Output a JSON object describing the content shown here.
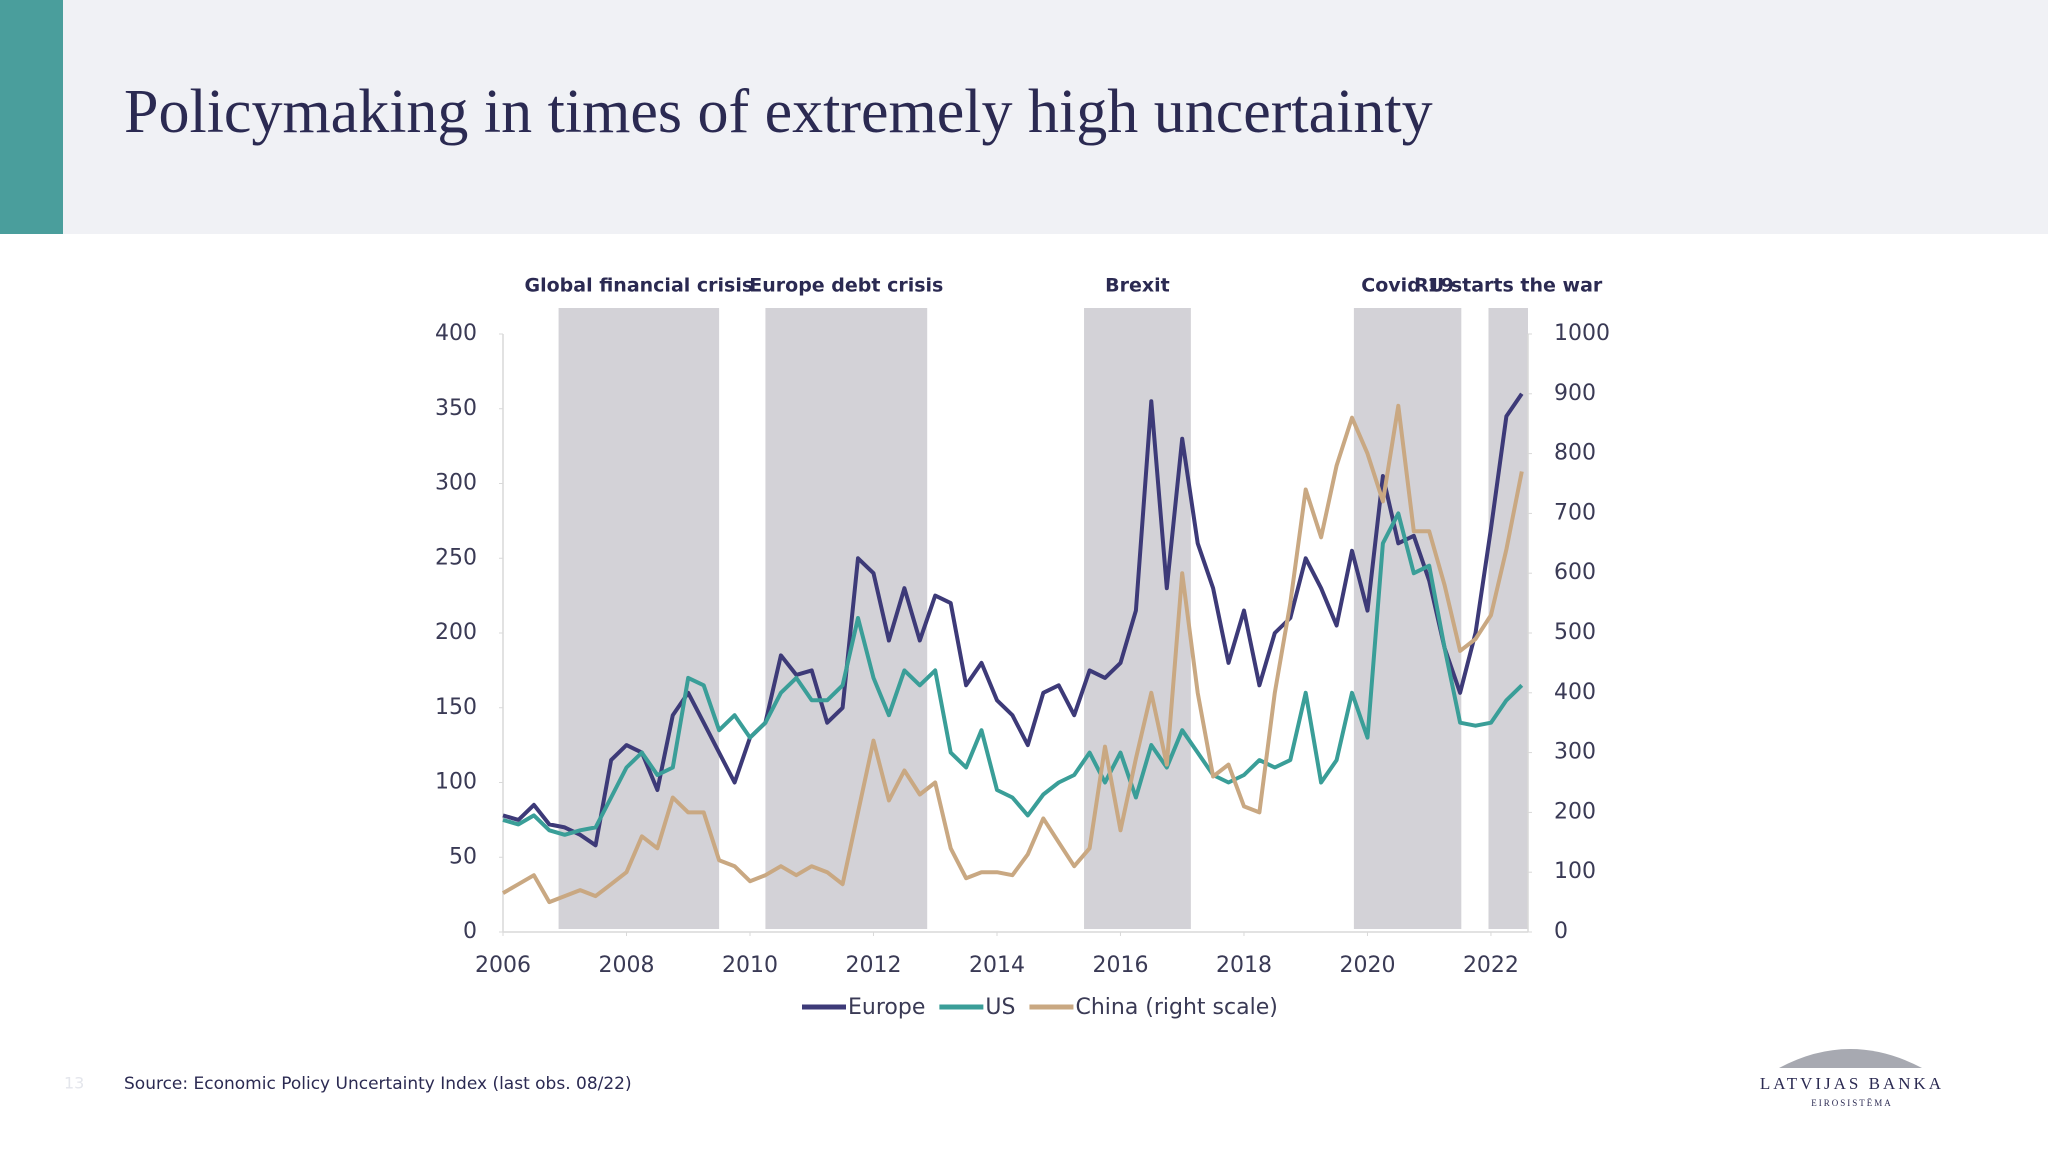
{
  "slide": {
    "title": "Policymaking in times of extremely high uncertainty"
  },
  "chart_data": {
    "type": "line",
    "x": [
      2006,
      2006.25,
      2006.5,
      2006.75,
      2007,
      2007.25,
      2007.5,
      2007.75,
      2008,
      2008.25,
      2008.5,
      2008.75,
      2009,
      2009.25,
      2009.5,
      2009.75,
      2010,
      2010.25,
      2010.5,
      2010.75,
      2011,
      2011.25,
      2011.5,
      2011.75,
      2012,
      2012.25,
      2012.5,
      2012.75,
      2013,
      2013.25,
      2013.5,
      2013.75,
      2014,
      2014.25,
      2014.5,
      2014.75,
      2015,
      2015.25,
      2015.5,
      2015.75,
      2016,
      2016.25,
      2016.5,
      2016.75,
      2017,
      2017.25,
      2017.5,
      2017.75,
      2018,
      2018.25,
      2018.5,
      2018.75,
      2019,
      2019.25,
      2019.5,
      2019.75,
      2020,
      2020.25,
      2020.5,
      2020.75,
      2021,
      2021.25,
      2021.5,
      2021.75,
      2022,
      2022.25,
      2022.5
    ],
    "series": [
      {
        "name": "Europe",
        "color": "#3d3a78",
        "values": [
          78,
          75,
          85,
          72,
          70,
          65,
          58,
          115,
          125,
          120,
          95,
          145,
          160,
          140,
          120,
          100,
          130,
          140,
          185,
          172,
          175,
          140,
          150,
          250,
          240,
          195,
          230,
          195,
          225,
          220,
          165,
          180,
          155,
          145,
          125,
          160,
          165,
          145,
          175,
          170,
          180,
          215,
          355,
          230,
          330,
          260,
          230,
          180,
          215,
          165,
          200,
          210,
          250,
          230,
          205,
          255,
          215,
          305,
          260,
          265,
          235,
          190,
          160,
          200,
          270,
          345,
          360
        ]
      },
      {
        "name": "US",
        "color": "#3a9e98",
        "values": [
          75,
          72,
          78,
          68,
          65,
          68,
          70,
          90,
          110,
          120,
          105,
          110,
          170,
          165,
          135,
          145,
          130,
          140,
          160,
          170,
          155,
          155,
          165,
          210,
          170,
          145,
          175,
          165,
          175,
          120,
          110,
          135,
          95,
          90,
          78,
          92,
          100,
          105,
          120,
          100,
          120,
          90,
          125,
          110,
          135,
          120,
          105,
          100,
          105,
          115,
          110,
          115,
          160,
          100,
          115,
          160,
          130,
          260,
          280,
          240,
          245,
          190,
          140,
          138,
          140,
          155,
          165
        ]
      },
      {
        "name": "China (right scale)",
        "color": "#c9a882",
        "axis": "y2",
        "values": [
          65,
          80,
          95,
          50,
          60,
          70,
          60,
          80,
          100,
          160,
          140,
          225,
          200,
          200,
          120,
          110,
          85,
          95,
          110,
          95,
          110,
          100,
          80,
          200,
          320,
          220,
          270,
          230,
          250,
          140,
          90,
          100,
          100,
          95,
          130,
          190,
          150,
          110,
          140,
          310,
          170,
          290,
          400,
          280,
          600,
          400,
          260,
          280,
          210,
          200,
          400,
          550,
          740,
          660,
          780,
          860,
          800,
          720,
          880,
          670,
          670,
          580,
          470,
          490,
          530,
          640,
          770
        ]
      }
    ],
    "shaded": [
      {
        "label": "Global financial crisis",
        "start": 2006.9,
        "end": 2009.5
      },
      {
        "label": "Europe debt crisis",
        "start": 2010.25,
        "end": 2012.87
      },
      {
        "label": "Brexit",
        "start": 2015.41,
        "end": 2017.14
      },
      {
        "label": "Covid 19",
        "start": 2019.78,
        "end": 2021.52
      },
      {
        "label": "RU starts the war",
        "start": 2021.96,
        "end": 2022.6
      }
    ],
    "shade_color": "#d3d2d7",
    "xlim": [
      2006,
      2022.6
    ],
    "xticks": [
      2006,
      2008,
      2010,
      2012,
      2014,
      2016,
      2018,
      2020,
      2022
    ],
    "ylim": [
      0,
      400
    ],
    "yticks": [
      0,
      50,
      100,
      150,
      200,
      250,
      300,
      350,
      400
    ],
    "y2lim": [
      0,
      1000
    ],
    "y2ticks": [
      0,
      100,
      200,
      300,
      400,
      500,
      600,
      700,
      800,
      900,
      1000
    ],
    "legend": "bottom"
  },
  "footer": {
    "page_number": "13",
    "source": "Source: Economic Policy Uncertainty Index (last obs. 08/22)",
    "logo": {
      "name": "LATVIJAS BANKA",
      "subtitle": "EIROSISTĒMA"
    }
  }
}
